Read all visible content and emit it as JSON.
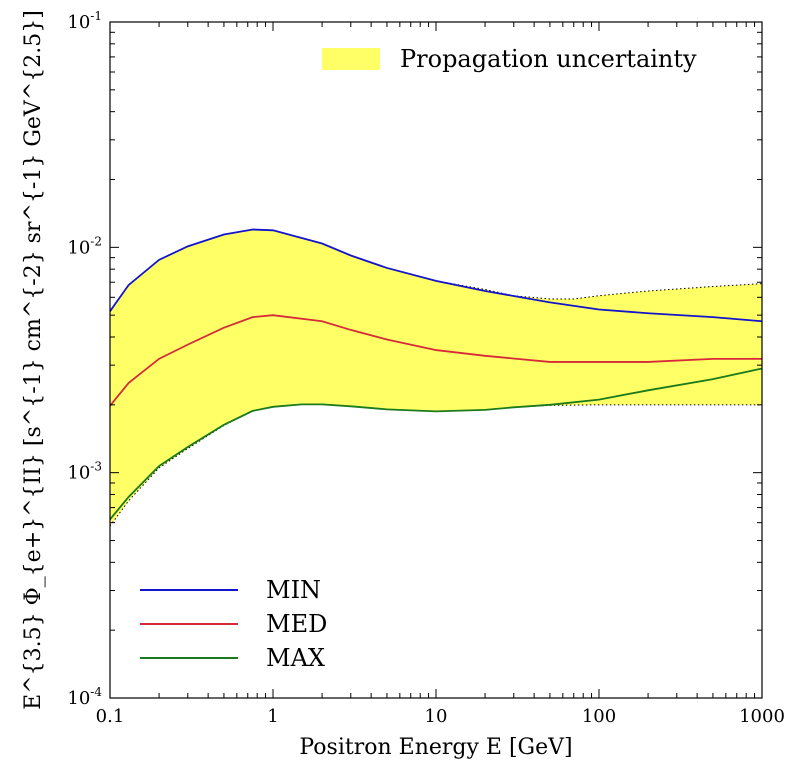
{
  "chart_data": {
    "type": "line",
    "xlabel": "Positron Energy E [GeV]",
    "ylabel": "E^{3.5} Φ_{e+}^{II} [s^{-1} cm^{-2} sr^{-1} GeV^{2.5}]",
    "x_scale": "log",
    "y_scale": "log",
    "xlim": [
      0.1,
      1000
    ],
    "ylim": [
      0.0001,
      0.1
    ],
    "x_ticks": [
      {
        "value": 0.1,
        "label": "0.1"
      },
      {
        "value": 1,
        "label": "1"
      },
      {
        "value": 10,
        "label": "10"
      },
      {
        "value": 100,
        "label": "100"
      },
      {
        "value": 1000,
        "label": "1000"
      }
    ],
    "y_ticks": [
      {
        "value": 0.0001,
        "base": "10",
        "exp": "-4"
      },
      {
        "value": 0.001,
        "base": "10",
        "exp": "-3"
      },
      {
        "value": 0.01,
        "base": "10",
        "exp": "-2"
      },
      {
        "value": 0.1,
        "base": "10",
        "exp": "-1"
      }
    ],
    "band": {
      "name": "Propagation uncertainty",
      "color": "#ffff66",
      "upper": [
        [
          0.1,
          0.0052
        ],
        [
          0.13,
          0.0068
        ],
        [
          0.2,
          0.0088
        ],
        [
          0.3,
          0.0101
        ],
        [
          0.5,
          0.0114
        ],
        [
          0.75,
          0.012
        ],
        [
          1,
          0.0119
        ],
        [
          2,
          0.0104
        ],
        [
          3,
          0.0092
        ],
        [
          5,
          0.0081
        ],
        [
          10,
          0.0071
        ],
        [
          20,
          0.0065
        ],
        [
          30,
          0.0061
        ],
        [
          50,
          0.0059
        ],
        [
          70,
          0.0059
        ],
        [
          100,
          0.0061
        ],
        [
          200,
          0.0064
        ],
        [
          500,
          0.0067
        ],
        [
          1000,
          0.0069
        ]
      ],
      "lower": [
        [
          0.1,
          0.00058
        ],
        [
          0.13,
          0.00075
        ],
        [
          0.2,
          0.00105
        ],
        [
          0.3,
          0.00128
        ],
        [
          0.5,
          0.00162
        ],
        [
          0.75,
          0.00188
        ],
        [
          1,
          0.00196
        ],
        [
          1.5,
          0.00201
        ],
        [
          2,
          0.00201
        ],
        [
          3,
          0.00197
        ],
        [
          5,
          0.00191
        ],
        [
          10,
          0.00187
        ],
        [
          20,
          0.0019
        ],
        [
          30,
          0.00195
        ],
        [
          50,
          0.00199
        ],
        [
          100,
          0.002
        ],
        [
          1000,
          0.002
        ]
      ]
    },
    "series": [
      {
        "name": "MIN",
        "color": "#1414cc",
        "points": [
          [
            0.1,
            0.0052
          ],
          [
            0.13,
            0.0068
          ],
          [
            0.2,
            0.0088
          ],
          [
            0.3,
            0.0101
          ],
          [
            0.5,
            0.0114
          ],
          [
            0.75,
            0.012
          ],
          [
            1,
            0.0119
          ],
          [
            2,
            0.0104
          ],
          [
            3,
            0.0092
          ],
          [
            5,
            0.0081
          ],
          [
            10,
            0.0071
          ],
          [
            20,
            0.0064
          ],
          [
            50,
            0.0057
          ],
          [
            100,
            0.0053
          ],
          [
            200,
            0.0051
          ],
          [
            500,
            0.0049
          ],
          [
            1000,
            0.0047
          ]
        ]
      },
      {
        "name": "MED",
        "color": "#d62a3a",
        "points": [
          [
            0.1,
            0.00198
          ],
          [
            0.13,
            0.0025
          ],
          [
            0.2,
            0.0032
          ],
          [
            0.3,
            0.0037
          ],
          [
            0.5,
            0.0044
          ],
          [
            0.75,
            0.0049
          ],
          [
            1,
            0.005
          ],
          [
            2,
            0.0047
          ],
          [
            3,
            0.0043
          ],
          [
            5,
            0.0039
          ],
          [
            10,
            0.0035
          ],
          [
            20,
            0.0033
          ],
          [
            50,
            0.0031
          ],
          [
            100,
            0.0031
          ],
          [
            200,
            0.0031
          ],
          [
            500,
            0.0032
          ],
          [
            1000,
            0.0032
          ]
        ]
      },
      {
        "name": "MAX",
        "color": "#1b7a1b",
        "points": [
          [
            0.1,
            0.00062
          ],
          [
            0.13,
            0.00078
          ],
          [
            0.2,
            0.00107
          ],
          [
            0.3,
            0.0013
          ],
          [
            0.5,
            0.00163
          ],
          [
            0.75,
            0.00188
          ],
          [
            1,
            0.00196
          ],
          [
            1.5,
            0.00201
          ],
          [
            2,
            0.00201
          ],
          [
            3,
            0.00197
          ],
          [
            5,
            0.00191
          ],
          [
            10,
            0.00187
          ],
          [
            20,
            0.0019
          ],
          [
            30,
            0.00195
          ],
          [
            50,
            0.002
          ],
          [
            100,
            0.00211
          ],
          [
            200,
            0.00232
          ],
          [
            500,
            0.0026
          ],
          [
            1000,
            0.0029
          ]
        ]
      }
    ],
    "legend": {
      "lines_location": "lower-left",
      "band_location": "upper-right"
    },
    "grid": false
  }
}
